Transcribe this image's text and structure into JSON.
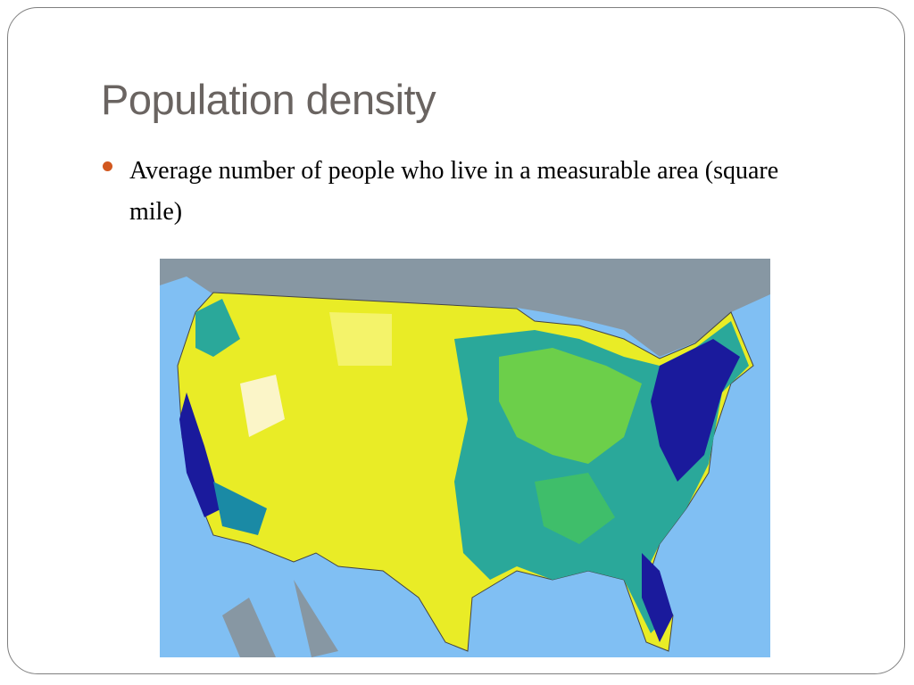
{
  "header": {
    "title": "Population density"
  },
  "bullets": [
    "Average number of people who live in a measurable area (square mile)"
  ]
}
